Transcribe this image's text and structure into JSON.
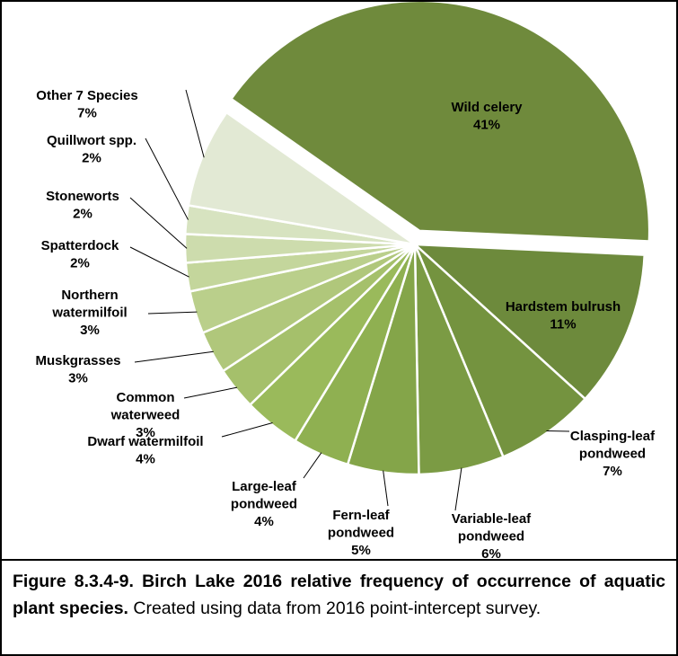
{
  "chart_data": {
    "type": "pie",
    "categories": [
      "Wild celery",
      "Hardstem bulrush",
      "Clasping-leaf pondweed",
      "Variable-leaf pondweed",
      "Fern-leaf pondweed",
      "Large-leaf pondweed",
      "Dwarf watermilfoil",
      "Common waterweed",
      "Muskgrasses",
      "Northern watermilfoil",
      "Spatterdock",
      "Stoneworts",
      "Quillwort spp.",
      "Other 7 Species"
    ],
    "values": [
      41,
      11,
      7,
      6,
      5,
      4,
      4,
      3,
      3,
      3,
      2,
      2,
      2,
      7
    ],
    "value_labels": [
      "41%",
      "11%",
      "7%",
      "6%",
      "5%",
      "4%",
      "4%",
      "3%",
      "3%",
      "3%",
      "2%",
      "2%",
      "2%",
      "7%"
    ],
    "colors": [
      "#6f8a3c",
      "#6d8a3c",
      "#74933f",
      "#7b9b44",
      "#84a549",
      "#8fb051",
      "#9aba5b",
      "#a5c06b",
      "#b0c77b",
      "#bacf8b",
      "#c4d69c",
      "#cddcad",
      "#d7e3c0",
      "#e2e9d4"
    ]
  },
  "caption": {
    "bold": "Figure 8.3.4-9.  Birch Lake 2016 relative frequency of occurrence of aquatic plant species.",
    "text": "Created using data from 2016 point-intercept survey."
  }
}
